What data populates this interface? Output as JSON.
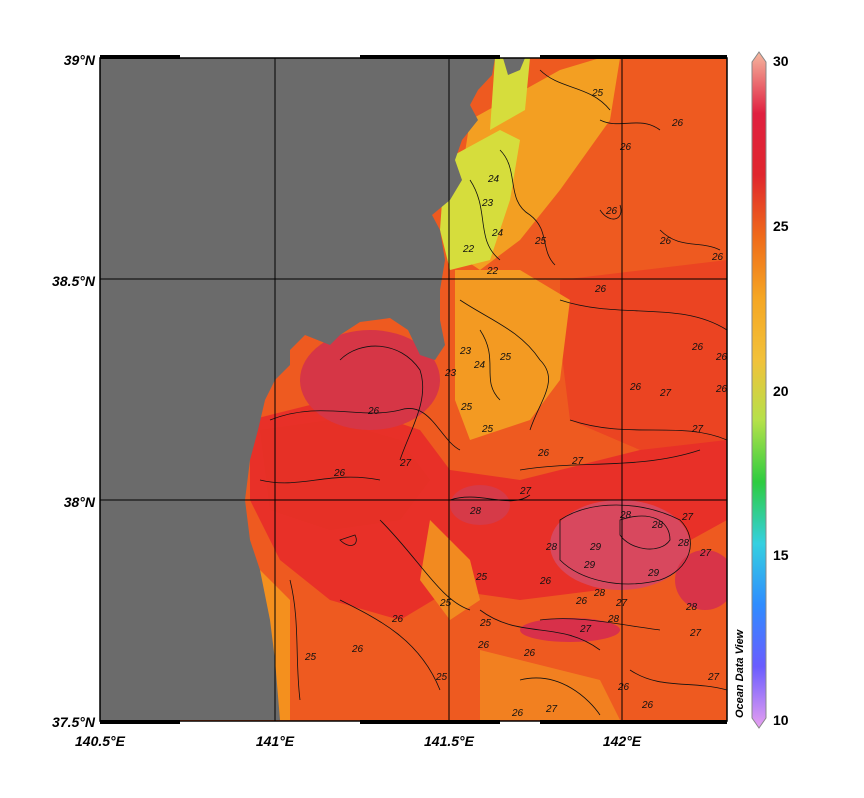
{
  "map": {
    "lat_ticks": [
      "39°N",
      "38.5°N",
      "38°N",
      "37.5°N"
    ],
    "lon_ticks": [
      "140.5°E",
      "141°E",
      "141.5°E",
      "142°E"
    ],
    "colorbar": {
      "ticks": [
        "30",
        "25",
        "20",
        "15",
        "10"
      ],
      "stops": [
        "#e8a0f0",
        "#6a5cff",
        "#2f8cff",
        "#35d0e0",
        "#2ecc40",
        "#b5e14a",
        "#f2c13a",
        "#f5a623",
        "#ef6a1a",
        "#e0262e",
        "#e02040",
        "#f5b8a0"
      ]
    },
    "watermark": "Ocean Data View",
    "land_color": "#6b6b6b",
    "contour_labels": [
      "25",
      "26",
      "26",
      "26",
      "24",
      "23",
      "24",
      "22",
      "22",
      "25",
      "26",
      "26",
      "26",
      "26",
      "26",
      "23",
      "24",
      "23",
      "25",
      "25",
      "25",
      "26",
      "27",
      "26",
      "26",
      "27",
      "27",
      "28",
      "28",
      "27",
      "26",
      "26",
      "27",
      "27",
      "28",
      "28",
      "29",
      "29",
      "29",
      "28",
      "28",
      "28",
      "27",
      "27",
      "28",
      "27",
      "27",
      "26",
      "25",
      "26",
      "26",
      "25",
      "25",
      "26",
      "25",
      "25",
      "26",
      "26",
      "26",
      "27",
      "27",
      "26",
      "26"
    ]
  }
}
